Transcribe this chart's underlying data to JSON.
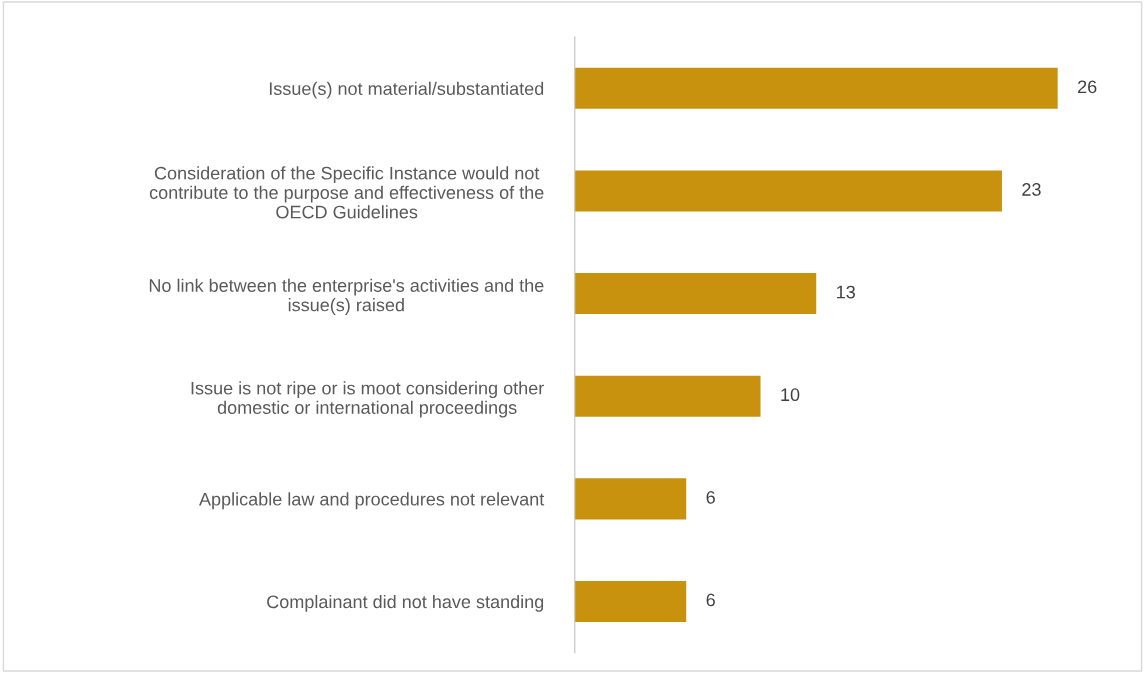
{
  "chart_data": {
    "type": "bar",
    "orientation": "horizontal",
    "categories": [
      "Issue(s) not material/substantiated",
      "Consideration of the Specific Instance would not\ncontribute to the purpose and effectiveness of the\nOECD Guidelines",
      "No link between the enterprise's activities and the\nissue(s) raised",
      "Issue is not ripe or is moot considering other\ndomestic or international proceedings",
      "Applicable law and procedures not relevant",
      "Complainant did not have standing"
    ],
    "values": [
      26,
      23,
      13,
      10,
      6,
      6
    ],
    "color": "#c9920e",
    "data_labels": true,
    "grid": false,
    "legend": false
  }
}
